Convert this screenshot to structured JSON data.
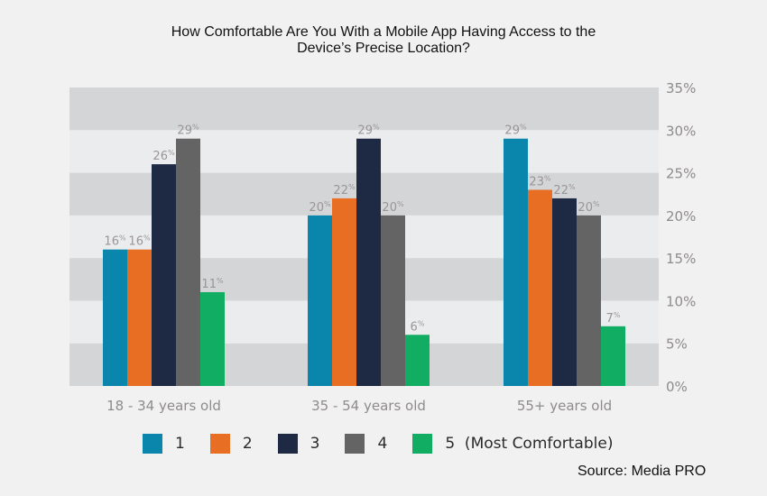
{
  "chart_data": {
    "type": "bar",
    "title_lines": [
      "How Comfortable Are You With a Mobile App Having Access to the",
      "Device’s Precise Location?"
    ],
    "categories": [
      "18 - 34 years old",
      "35 - 54 years old",
      "55+ years old"
    ],
    "series": [
      {
        "name": "1",
        "color": "#0a86ad",
        "values": [
          16,
          20,
          29
        ],
        "labels": [
          "16",
          "20",
          "29"
        ]
      },
      {
        "name": "2",
        "color": "#e86e24",
        "values": [
          16,
          22,
          23
        ],
        "labels": [
          "16",
          "22",
          "23"
        ]
      },
      {
        "name": "3",
        "color": "#1e2944",
        "values": [
          26,
          29,
          22
        ],
        "labels": [
          "26",
          "29",
          "22"
        ]
      },
      {
        "name": "4",
        "color": "#646464",
        "values": [
          29,
          20,
          20
        ],
        "labels": [
          "29",
          "20",
          "20"
        ]
      },
      {
        "name": "5  (Most Comfortable)",
        "color": "#10ad63",
        "values": [
          11,
          6,
          7
        ],
        "labels": [
          "11",
          "6",
          "7"
        ]
      }
    ],
    "data_label_suffix": "%",
    "xlabel": "",
    "ylabel": "",
    "ylim": [
      0,
      35
    ],
    "yticks": [
      "0%",
      "5%",
      "10%",
      "15%",
      "20%",
      "25%",
      "30%",
      "35%"
    ],
    "ytick_values": [
      0,
      5,
      10,
      15,
      20,
      25,
      30,
      35
    ],
    "y_axis_side": "right",
    "grid": "alternating horizontal bands",
    "band_colors": [
      "#d4d5d7",
      "#ebecee"
    ],
    "legend_position": "bottom"
  },
  "source": "Source: Media PRO"
}
